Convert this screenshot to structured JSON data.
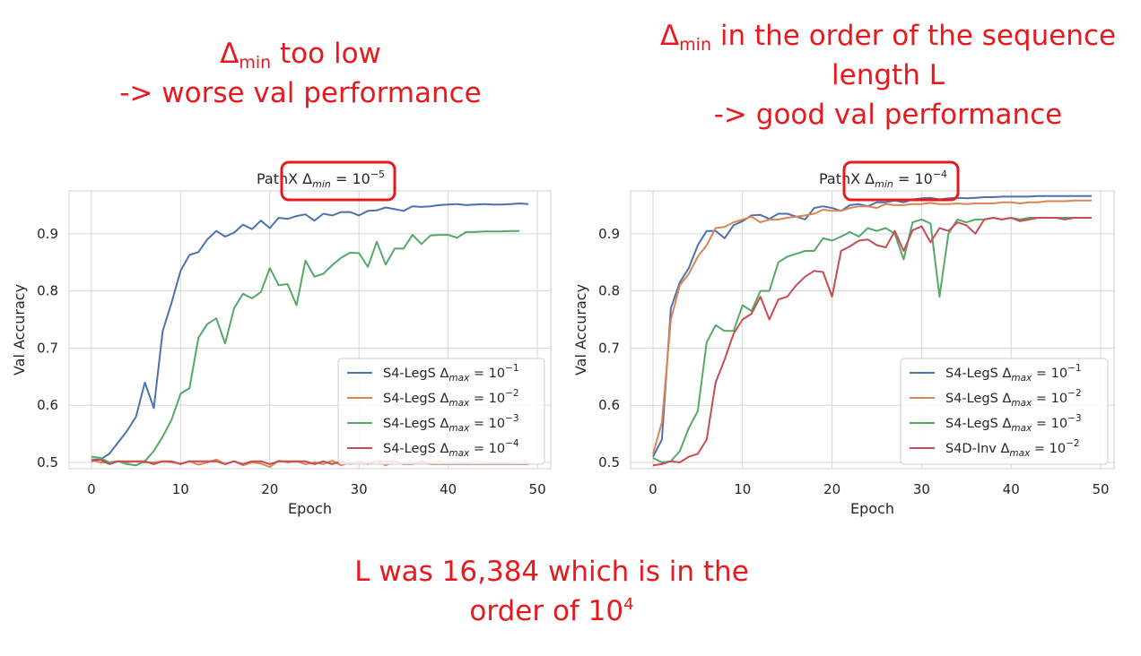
{
  "annotations": {
    "left": {
      "line1_symbol": "Δ",
      "line1_sub": "min",
      "line1_rest": " too low",
      "line2": "-> worse val performance"
    },
    "right": {
      "line1_symbol": "Δ",
      "line1_sub": "min",
      "line1_rest": " in the order of the sequence",
      "line2": "length L",
      "line3": "-> good val performance"
    },
    "bottom": {
      "line1": "L was 16,384 which is in the",
      "line2_base": "order of 10",
      "line2_sup": "4"
    },
    "highlight_color": "#e8191e"
  },
  "chart_data": [
    {
      "type": "line",
      "title_prefix": "PathX ",
      "title_math": "Δ",
      "title_sub": "min",
      "title_eq": " = 10",
      "title_exp": "−5",
      "xlabel": "Epoch",
      "ylabel": "Val Accuracy",
      "xlim": [
        -2.5,
        51.5
      ],
      "ylim": [
        0.489,
        0.975
      ],
      "xticks": [
        "0",
        "10",
        "20",
        "30",
        "40",
        "50"
      ],
      "yticks": [
        "0.5",
        "0.6",
        "0.7",
        "0.8",
        "0.9"
      ],
      "grid": true,
      "legend_position": "lower-right",
      "series": [
        {
          "name_prefix": "S4-LegS  ",
          "name_sub": "max",
          "name_eq": " = 10",
          "name_exp": "−1",
          "color": "#4c72b0",
          "values": [
            0.505,
            0.505,
            0.515,
            0.535,
            0.555,
            0.58,
            0.64,
            0.595,
            0.73,
            0.78,
            0.835,
            0.863,
            0.868,
            0.89,
            0.905,
            0.895,
            0.902,
            0.916,
            0.908,
            0.923,
            0.91,
            0.928,
            0.926,
            0.931,
            0.934,
            0.923,
            0.935,
            0.932,
            0.938,
            0.938,
            0.932,
            0.94,
            0.941,
            0.946,
            0.943,
            0.94,
            0.948,
            0.947,
            0.948,
            0.95,
            0.951,
            0.952,
            0.95,
            0.951,
            0.952,
            0.951,
            0.951,
            0.952,
            0.953,
            0.952
          ]
        },
        {
          "name_prefix": "S4-LegS  ",
          "name_sub": "max",
          "name_eq": " = 10",
          "name_exp": "−2",
          "color": "#dd8452",
          "values": [
            0.505,
            0.5,
            0.5,
            0.502,
            0.5,
            0.502,
            0.5,
            0.5,
            0.502,
            0.5,
            0.498,
            0.502,
            0.496,
            0.5,
            0.505,
            0.497,
            0.502,
            0.495,
            0.5,
            0.498,
            0.492,
            0.503,
            0.5,
            0.502,
            0.497,
            0.5,
            0.497,
            0.503,
            0.495,
            0.5,
            0.498,
            0.5,
            0.502,
            0.495,
            0.502,
            0.497,
            0.5,
            0.498,
            0.5,
            0.502,
            0.498,
            0.5,
            0.498,
            0.502,
            0.5,
            0.498,
            0.5,
            0.498,
            0.497,
            0.5
          ]
        },
        {
          "name_prefix": "S4-LegS  ",
          "name_sub": "max",
          "name_eq": " = 10",
          "name_exp": "−3",
          "color": "#55a868",
          "values": [
            0.51,
            0.508,
            0.5,
            0.502,
            0.497,
            0.495,
            0.502,
            0.52,
            0.545,
            0.575,
            0.62,
            0.63,
            0.718,
            0.742,
            0.752,
            0.708,
            0.77,
            0.795,
            0.787,
            0.798,
            0.84,
            0.81,
            0.812,
            0.775,
            0.853,
            0.825,
            0.83,
            0.845,
            0.858,
            0.867,
            0.866,
            0.842,
            0.886,
            0.846,
            0.874,
            0.874,
            0.898,
            0.882,
            0.897,
            0.898,
            0.898,
            0.893,
            0.903,
            0.903,
            0.904,
            0.904,
            0.904,
            0.905,
            0.905
          ]
        },
        {
          "name_prefix": "S4-LegS  ",
          "name_sub": "max",
          "name_eq": " = 10",
          "name_exp": "−4",
          "color": "#c44e52",
          "values": [
            0.502,
            0.505,
            0.497,
            0.502,
            0.502,
            0.502,
            0.502,
            0.497,
            0.502,
            0.502,
            0.497,
            0.502,
            0.502,
            0.502,
            0.502,
            0.497,
            0.502,
            0.497,
            0.502,
            0.502,
            0.497,
            0.502,
            0.502,
            0.502,
            0.502,
            0.497,
            0.502,
            0.497,
            0.502,
            0.497,
            0.502,
            0.497,
            0.502,
            0.502,
            0.502,
            0.497,
            0.497,
            0.502,
            0.497,
            0.497,
            0.497,
            0.497,
            0.497,
            0.497,
            0.497,
            0.497,
            0.497,
            0.497,
            0.497,
            0.497
          ]
        }
      ]
    },
    {
      "type": "line",
      "title_prefix": "PathX ",
      "title_math": "Δ",
      "title_sub": "min",
      "title_eq": " = 10",
      "title_exp": "−4",
      "xlabel": "Epoch",
      "ylabel": "Val Accuracy",
      "xlim": [
        -2.5,
        51.5
      ],
      "ylim": [
        0.489,
        0.975
      ],
      "xticks": [
        "0",
        "10",
        "20",
        "30",
        "40",
        "50"
      ],
      "yticks": [
        "0.5",
        "0.6",
        "0.7",
        "0.8",
        "0.9"
      ],
      "grid": true,
      "legend_position": "lower-right",
      "series": [
        {
          "name_prefix": "S4-LegS  ",
          "name_sub": "max",
          "name_eq": " = 10",
          "name_exp": "−1",
          "color": "#4c72b0",
          "values": [
            0.51,
            0.54,
            0.77,
            0.815,
            0.84,
            0.88,
            0.905,
            0.905,
            0.892,
            0.915,
            0.922,
            0.932,
            0.933,
            0.926,
            0.935,
            0.935,
            0.93,
            0.925,
            0.945,
            0.948,
            0.945,
            0.94,
            0.95,
            0.952,
            0.948,
            0.955,
            0.955,
            0.958,
            0.955,
            0.96,
            0.962,
            0.963,
            0.96,
            0.962,
            0.963,
            0.962,
            0.963,
            0.964,
            0.964,
            0.965,
            0.965,
            0.965,
            0.965,
            0.966,
            0.966,
            0.966,
            0.966,
            0.966,
            0.966,
            0.966
          ]
        },
        {
          "name_prefix": "S4-LegS  ",
          "name_sub": "max",
          "name_eq": " = 10",
          "name_exp": "−2",
          "color": "#dd8452",
          "values": [
            0.515,
            0.57,
            0.75,
            0.81,
            0.83,
            0.86,
            0.88,
            0.91,
            0.912,
            0.92,
            0.925,
            0.93,
            0.92,
            0.925,
            0.925,
            0.928,
            0.93,
            0.932,
            0.935,
            0.942,
            0.94,
            0.94,
            0.945,
            0.948,
            0.948,
            0.945,
            0.952,
            0.95,
            0.95,
            0.952,
            0.952,
            0.954,
            0.952,
            0.952,
            0.953,
            0.952,
            0.953,
            0.953,
            0.953,
            0.955,
            0.955,
            0.953,
            0.955,
            0.955,
            0.957,
            0.957,
            0.957,
            0.958,
            0.958,
            0.958
          ]
        },
        {
          "name_prefix": "S4-LegS  ",
          "name_sub": "max",
          "name_eq": " = 10",
          "name_exp": "−3",
          "color": "#55a868",
          "values": [
            0.508,
            0.5,
            0.502,
            0.52,
            0.56,
            0.59,
            0.71,
            0.74,
            0.73,
            0.73,
            0.775,
            0.765,
            0.8,
            0.8,
            0.85,
            0.86,
            0.865,
            0.87,
            0.87,
            0.892,
            0.888,
            0.895,
            0.903,
            0.895,
            0.91,
            0.905,
            0.91,
            0.9,
            0.855,
            0.92,
            0.925,
            0.918,
            0.79,
            0.9,
            0.925,
            0.92,
            0.925,
            0.925,
            0.928,
            0.925,
            0.928,
            0.925,
            0.928,
            0.928,
            0.928,
            0.928,
            0.928,
            0.928,
            0.928,
            0.928
          ]
        },
        {
          "name_prefix": "S4D-Inv  ",
          "name_sub": "max",
          "name_eq": " = 10",
          "name_exp": "−2",
          "color": "#c44e52",
          "values": [
            0.495,
            0.497,
            0.502,
            0.5,
            0.51,
            0.515,
            0.54,
            0.64,
            0.68,
            0.725,
            0.75,
            0.76,
            0.79,
            0.75,
            0.785,
            0.79,
            0.81,
            0.825,
            0.835,
            0.833,
            0.79,
            0.87,
            0.878,
            0.888,
            0.89,
            0.88,
            0.876,
            0.905,
            0.87,
            0.906,
            0.913,
            0.885,
            0.91,
            0.905,
            0.92,
            0.915,
            0.9,
            0.925,
            0.928,
            0.925,
            0.928,
            0.922,
            0.925,
            0.928,
            0.928,
            0.928,
            0.925,
            0.928,
            0.928,
            0.928
          ]
        }
      ]
    }
  ]
}
